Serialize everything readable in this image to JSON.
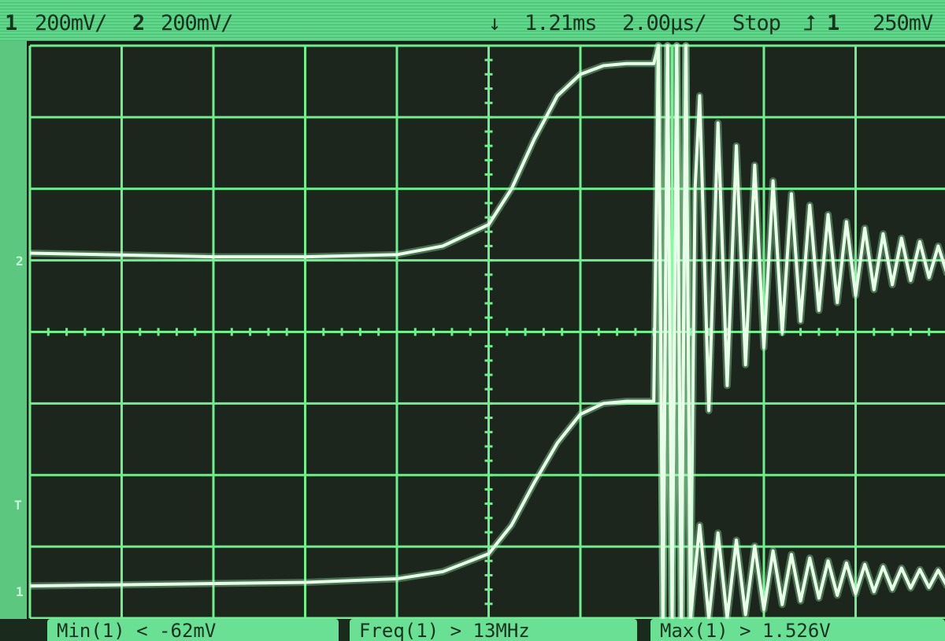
{
  "status_bar": {
    "ch1_label": "1",
    "ch1_scale": "200mV/",
    "ch2_label": "2",
    "ch2_scale": "200mV/",
    "trigger_position_icon": "trigger-position-arrow-icon",
    "time_delay": "1.21ms",
    "time_scale": "2.00µs/",
    "run_state": "Stop",
    "trigger_slope_icon": "rising-edge-icon",
    "trigger_source": "1",
    "trigger_level": "250mV"
  },
  "markers": {
    "ch2_ground": "2",
    "ch1_ground": "1",
    "trigger_level": "T"
  },
  "measurements": [
    {
      "text": "Min(1) < -62mV"
    },
    {
      "text": "Freq(1) > 13MHz"
    },
    {
      "text": "Max(1) > 1.526V"
    }
  ],
  "colors": {
    "trace": "#e8ffe8",
    "grid": "#6cf08c",
    "status_bg": "#5fd68a",
    "screen_bg": "#1c261d"
  },
  "chart_data": {
    "type": "line",
    "xlabel": "",
    "ylabel": "",
    "xlim": [
      -10,
      10
    ],
    "ylim": [
      -4,
      4
    ],
    "x_units": "µs from trigger",
    "y_units": "divisions",
    "grid": true,
    "grid_divisions": [
      10,
      8
    ],
    "series": [
      {
        "name": "2",
        "points": [
          [
            -10,
            1.1
          ],
          [
            -6,
            1.05
          ],
          [
            -4,
            1.05
          ],
          [
            -2,
            1.08
          ],
          [
            -1,
            1.2
          ],
          [
            0,
            1.5
          ],
          [
            0.5,
            2.0
          ],
          [
            1,
            2.7
          ],
          [
            1.5,
            3.3
          ],
          [
            2,
            3.6
          ],
          [
            2.5,
            3.72
          ],
          [
            3,
            3.75
          ],
          [
            3.6,
            3.75
          ],
          [
            3.7,
            4
          ],
          [
            3.8,
            -4
          ],
          [
            3.9,
            4
          ],
          [
            4.0,
            -4
          ],
          [
            4.1,
            4
          ],
          [
            4.2,
            -4
          ],
          [
            4.3,
            4
          ],
          [
            4.4,
            -4
          ],
          [
            4.5,
            2
          ],
          [
            4.6,
            3.3
          ],
          [
            4.8,
            -1.1
          ],
          [
            5.0,
            2.92
          ],
          [
            5.2,
            -0.75
          ],
          [
            5.4,
            2.6
          ],
          [
            5.6,
            -0.46
          ],
          [
            5.8,
            2.33
          ],
          [
            6.0,
            -0.22
          ],
          [
            6.2,
            2.11
          ],
          [
            6.4,
            -0.01
          ],
          [
            6.6,
            1.93
          ],
          [
            6.8,
            0.15
          ],
          [
            7.0,
            1.77
          ],
          [
            7.2,
            0.3
          ],
          [
            7.4,
            1.64
          ],
          [
            7.6,
            0.41
          ],
          [
            7.8,
            1.54
          ],
          [
            8.0,
            0.51
          ],
          [
            8.2,
            1.45
          ],
          [
            8.4,
            0.59
          ],
          [
            8.6,
            1.37
          ],
          [
            8.8,
            0.66
          ],
          [
            9.0,
            1.31
          ],
          [
            9.2,
            0.72
          ],
          [
            9.4,
            1.26
          ],
          [
            9.6,
            0.76
          ],
          [
            9.8,
            1.2
          ],
          [
            10,
            0.8
          ]
        ]
      },
      {
        "name": "1",
        "points": [
          [
            -10,
            -3.55
          ],
          [
            -4,
            -3.5
          ],
          [
            -2,
            -3.45
          ],
          [
            -1,
            -3.35
          ],
          [
            0,
            -3.1
          ],
          [
            0.5,
            -2.7
          ],
          [
            1,
            -2.1
          ],
          [
            1.5,
            -1.55
          ],
          [
            2,
            -1.15
          ],
          [
            2.5,
            -1.0
          ],
          [
            3,
            -0.97
          ],
          [
            3.6,
            -0.97
          ],
          [
            3.7,
            4
          ],
          [
            3.8,
            -4
          ],
          [
            3.9,
            4
          ],
          [
            4.0,
            -4
          ],
          [
            4.1,
            4
          ],
          [
            4.2,
            -4
          ],
          [
            4.3,
            4
          ],
          [
            4.4,
            -4
          ],
          [
            4.6,
            -2.7
          ],
          [
            4.8,
            -4
          ],
          [
            5.0,
            -2.81
          ],
          [
            5.2,
            -4
          ],
          [
            5.4,
            -2.91
          ],
          [
            5.6,
            -3.95
          ],
          [
            5.8,
            -2.99
          ],
          [
            6.0,
            -3.88
          ],
          [
            6.2,
            -3.06
          ],
          [
            6.4,
            -3.81
          ],
          [
            6.6,
            -3.11
          ],
          [
            6.8,
            -3.76
          ],
          [
            7.0,
            -3.16
          ],
          [
            7.2,
            -3.72
          ],
          [
            7.4,
            -3.2
          ],
          [
            7.6,
            -3.68
          ],
          [
            7.8,
            -3.23
          ],
          [
            8.0,
            -3.66
          ],
          [
            8.2,
            -3.25
          ],
          [
            8.4,
            -3.63
          ],
          [
            8.6,
            -3.28
          ],
          [
            8.8,
            -3.6
          ],
          [
            9.0,
            -3.3
          ],
          [
            9.2,
            -3.58
          ],
          [
            9.4,
            -3.32
          ],
          [
            9.6,
            -3.57
          ],
          [
            9.8,
            -3.33
          ],
          [
            10,
            -3.56
          ]
        ]
      }
    ]
  }
}
